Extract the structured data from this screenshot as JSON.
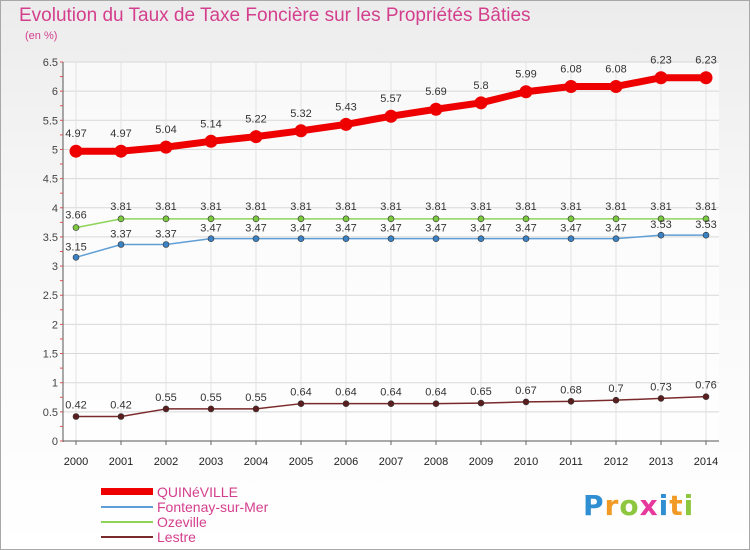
{
  "title": "Evolution du Taux de Taxe Foncière sur les Propriétés Bâties",
  "unit_label": "(en %)",
  "logo_text": "Proxiti",
  "chart_data": {
    "type": "line",
    "title": "Evolution du Taux de Taxe Foncière sur les Propriétés Bâties",
    "ylabel": "(en %)",
    "xlabel": "",
    "x": [
      2000,
      2001,
      2002,
      2003,
      2004,
      2005,
      2006,
      2007,
      2008,
      2009,
      2010,
      2011,
      2012,
      2013,
      2014
    ],
    "x_tick_labels": [
      "2000",
      "2001",
      "2002",
      "2003",
      "2004",
      "2005",
      "2006",
      "2007",
      "2008",
      "2009",
      "2010",
      "2011",
      "2012",
      "2013",
      "2014"
    ],
    "ylim": [
      0,
      6.5
    ],
    "y_ticks": [
      0,
      0.5,
      1,
      1.5,
      2,
      2.5,
      3,
      3.5,
      4,
      4.5,
      5,
      5.5,
      6,
      6.5
    ],
    "y_tick_labels": [
      "0",
      "0.5",
      "1",
      "1.5",
      "2",
      "2.5",
      "3",
      "3.5",
      "4",
      "4.5",
      "5",
      "5.5",
      "6",
      "6.5"
    ],
    "grid": true,
    "legend_position": "bottom-left",
    "series": [
      {
        "name": "QUINéVILLE",
        "color": "#ee0000",
        "values": [
          4.97,
          4.97,
          5.04,
          5.14,
          5.22,
          5.32,
          5.43,
          5.57,
          5.69,
          5.8,
          5.99,
          6.08,
          6.08,
          6.23,
          6.23
        ],
        "labels": [
          "4.97",
          "4.97",
          "5.04",
          "5.14",
          "5.22",
          "5.32",
          "5.43",
          "5.57",
          "5.69",
          "5.8",
          "5.99",
          "6.08",
          "6.08",
          "6.23",
          "6.23"
        ]
      },
      {
        "name": "Fontenay-sur-Mer",
        "color": "#5f9fd6",
        "values": [
          3.15,
          3.37,
          3.37,
          3.47,
          3.47,
          3.47,
          3.47,
          3.47,
          3.47,
          3.47,
          3.47,
          3.47,
          3.47,
          3.53,
          3.53
        ],
        "labels": [
          "3.15",
          "3.37",
          "3.37",
          "3.47",
          "3.47",
          "3.47",
          "3.47",
          "3.47",
          "3.47",
          "3.47",
          "3.47",
          "3.47",
          "3.47",
          "3.53",
          "3.53"
        ]
      },
      {
        "name": "Ozeville",
        "color": "#8fd45a",
        "values": [
          3.66,
          3.81,
          3.81,
          3.81,
          3.81,
          3.81,
          3.81,
          3.81,
          3.81,
          3.81,
          3.81,
          3.81,
          3.81,
          3.81,
          3.81
        ],
        "labels": [
          "3.66",
          "3.81",
          "3.81",
          "3.81",
          "3.81",
          "3.81",
          "3.81",
          "3.81",
          "3.81",
          "3.81",
          "3.81",
          "3.81",
          "3.81",
          "3.81",
          "3.81"
        ]
      },
      {
        "name": "Lestre",
        "color": "#7a2a2a",
        "values": [
          0.42,
          0.42,
          0.55,
          0.55,
          0.55,
          0.64,
          0.64,
          0.64,
          0.64,
          0.65,
          0.67,
          0.68,
          0.7,
          0.73,
          0.76
        ],
        "labels": [
          "0.42",
          "0.42",
          "0.55",
          "0.55",
          "0.55",
          "0.64",
          "0.64",
          "0.64",
          "0.64",
          "0.65",
          "0.67",
          "0.68",
          "0.7",
          "0.73",
          "0.76"
        ]
      }
    ]
  }
}
